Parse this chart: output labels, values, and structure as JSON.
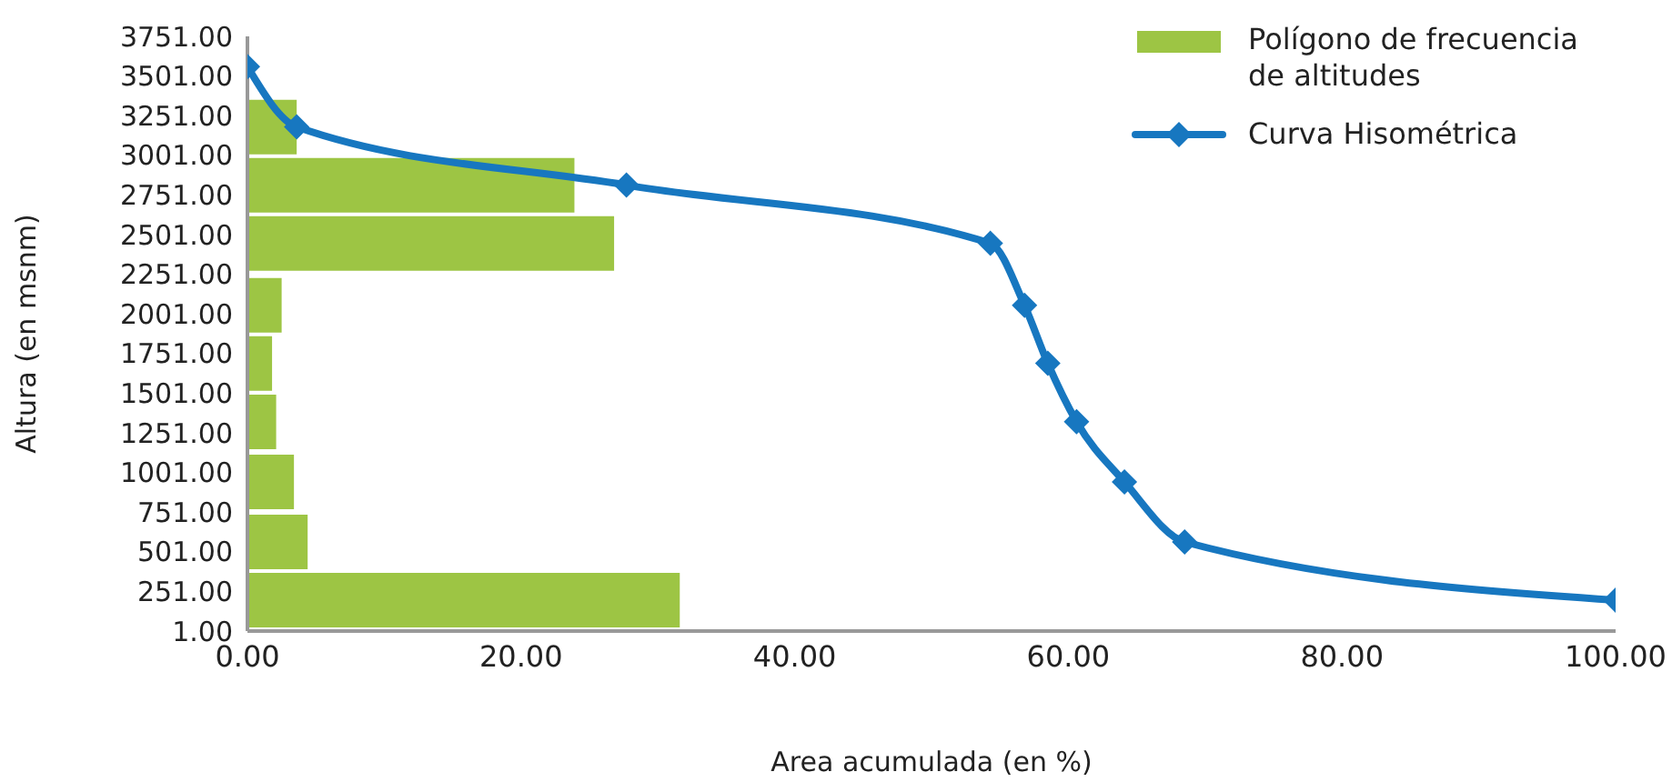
{
  "chart_data": {
    "type": "bar",
    "orientation": "horizontal",
    "xlabel": "Area acumulada (en %)",
    "ylabel": "Altura  (en msnm)",
    "series": [
      {
        "name": "Polígono de frecuencia de altitudes",
        "color": "#9dc544",
        "x": [
          3180,
          2813,
          2446,
          2055,
          1689,
          1321,
          942,
          563,
          196
        ],
        "values": [
          3.6,
          23.9,
          26.8,
          2.5,
          1.8,
          2.1,
          3.4,
          4.4,
          31.6
        ]
      },
      {
        "name": "Curva Hisométrica",
        "type": "line",
        "color": "#1777c0",
        "x": [
          3560,
          3180,
          2813,
          2446,
          2055,
          1689,
          1321,
          942,
          563,
          196
        ],
        "values": [
          0,
          3.6,
          27.7,
          54.3,
          56.8,
          58.5,
          60.6,
          64.1,
          68.5,
          100
        ]
      }
    ],
    "marker": "diamond",
    "xlim": [
      0,
      100
    ],
    "xticks": [
      {
        "value": 0,
        "label": "0.00"
      },
      {
        "value": 20,
        "label": "20.00"
      },
      {
        "value": 40,
        "label": "40.00"
      },
      {
        "value": 60,
        "label": "60.00"
      },
      {
        "value": 80,
        "label": "80.00"
      },
      {
        "value": 100,
        "label": "100.00"
      }
    ],
    "ylim": [
      1,
      3751
    ],
    "yticks": [
      {
        "value": 1,
        "label": "1.00"
      },
      {
        "value": 251,
        "label": "251.00"
      },
      {
        "value": 501,
        "label": "501.00"
      },
      {
        "value": 751,
        "label": "751.00"
      },
      {
        "value": 1001,
        "label": "1001.00"
      },
      {
        "value": 1251,
        "label": "1251.00"
      },
      {
        "value": 1501,
        "label": "1501.00"
      },
      {
        "value": 1751,
        "label": "1751.00"
      },
      {
        "value": 2001,
        "label": "2001.00"
      },
      {
        "value": 2251,
        "label": "2251.00"
      },
      {
        "value": 2501,
        "label": "2501.00"
      },
      {
        "value": 2751,
        "label": "2751.00"
      },
      {
        "value": 3001,
        "label": "3001.00"
      },
      {
        "value": 3251,
        "label": "3251.00"
      },
      {
        "value": 3501,
        "label": "3501.00"
      },
      {
        "value": 3751,
        "label": "3751.00"
      }
    ],
    "grid": false,
    "legend": "top right"
  }
}
